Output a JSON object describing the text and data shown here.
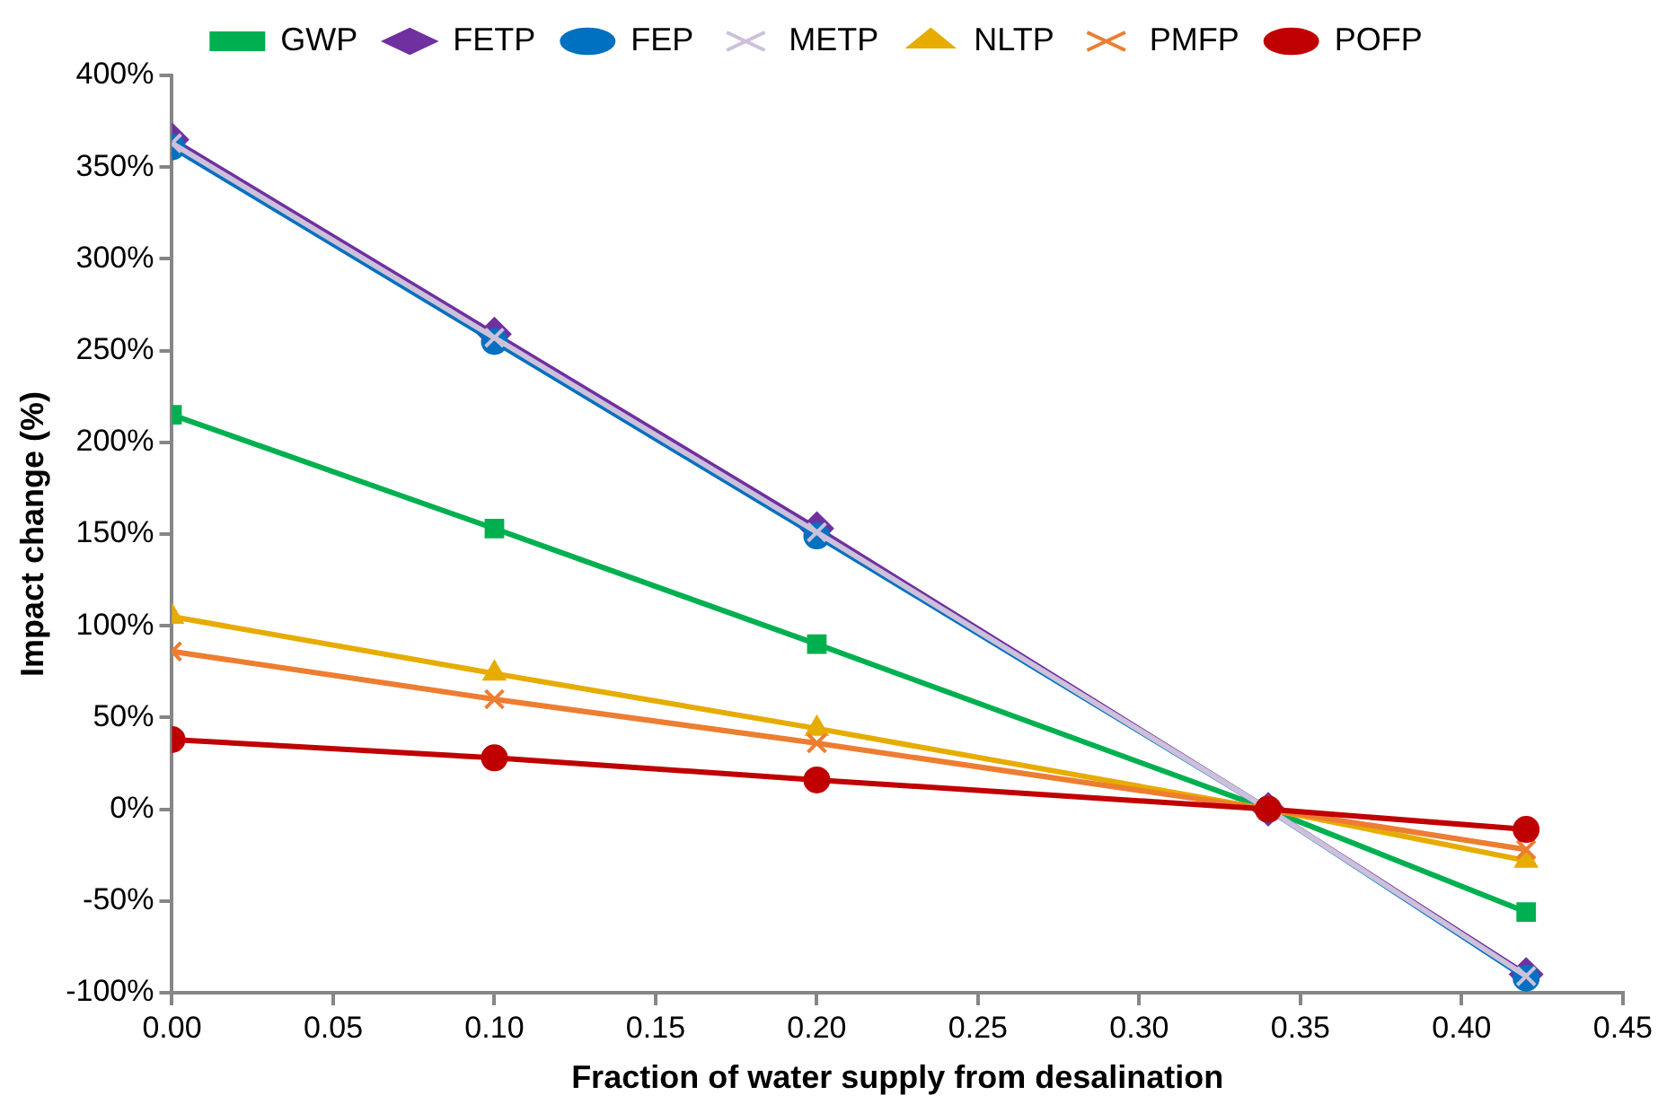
{
  "chart_data": {
    "type": "line",
    "xlabel": "Fraction of water supply from desalination",
    "ylabel": "Impact change (%)",
    "x": [
      0,
      0.1,
      0.2,
      0.34,
      0.42
    ],
    "series": [
      {
        "name": "GWP",
        "color": "#00b050",
        "marker": "square",
        "values": [
          215,
          153,
          90,
          0,
          -56
        ]
      },
      {
        "name": "FETP",
        "color": "#7030a0",
        "marker": "diamond",
        "values": [
          365,
          259,
          153,
          0,
          -90
        ]
      },
      {
        "name": "FEP",
        "color": "#0070c0",
        "marker": "circle",
        "values": [
          361,
          255,
          149,
          0,
          -92
        ]
      },
      {
        "name": "METP",
        "color": "#ccc0da",
        "marker": "cross",
        "values": [
          363,
          257,
          151,
          0,
          -91
        ]
      },
      {
        "name": "NLTP",
        "color": "#e6ac00",
        "marker": "triangle",
        "values": [
          105,
          74,
          44,
          0,
          -28
        ]
      },
      {
        "name": "PMFP",
        "color": "#ed7d31",
        "marker": "cross",
        "values": [
          86,
          60,
          36,
          0,
          -22
        ]
      },
      {
        "name": "POFP",
        "color": "#c00000",
        "marker": "circle",
        "values": [
          38,
          28,
          16,
          0,
          -11
        ]
      }
    ],
    "xlim": [
      0,
      0.45
    ],
    "xticks": [
      {
        "value": 0,
        "label": "0.00"
      },
      {
        "value": 0.05,
        "label": "0.05"
      },
      {
        "value": 0.1,
        "label": "0.10"
      },
      {
        "value": 0.15,
        "label": "0.15"
      },
      {
        "value": 0.2,
        "label": "0.20"
      },
      {
        "value": 0.25,
        "label": "0.25"
      },
      {
        "value": 0.3,
        "label": "0.30"
      },
      {
        "value": 0.35,
        "label": "0.35"
      },
      {
        "value": 0.4,
        "label": "0.40"
      },
      {
        "value": 0.45,
        "label": "0.45"
      }
    ],
    "ylim": [
      -100,
      400
    ],
    "yticks": [
      {
        "value": -100,
        "label": "-100%"
      },
      {
        "value": -50,
        "label": "-50%"
      },
      {
        "value": 0,
        "label": "0%"
      },
      {
        "value": 50,
        "label": "50%"
      },
      {
        "value": 100,
        "label": "100%"
      },
      {
        "value": 150,
        "label": "150%"
      },
      {
        "value": 200,
        "label": "200%"
      },
      {
        "value": 250,
        "label": "250%"
      },
      {
        "value": 300,
        "label": "300%"
      },
      {
        "value": 350,
        "label": "350%"
      },
      {
        "value": 400,
        "label": "400%"
      }
    ],
    "grid": false,
    "legend": "top",
    "line_style": "solid"
  }
}
